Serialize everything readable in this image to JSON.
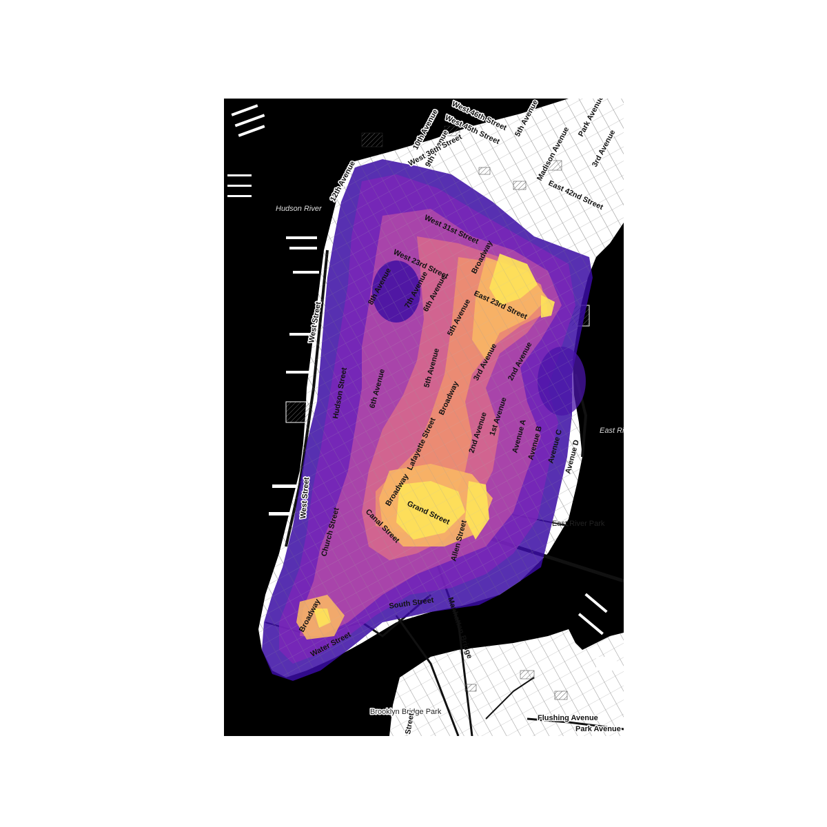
{
  "map": {
    "water_labels": [
      "Hudson River",
      "East River"
    ],
    "park_labels": [
      "East River Park",
      "Brooklyn Bridge Park"
    ],
    "street_labels": [
      "West 46th Street",
      "West 45th Street",
      "10th Avenue",
      "9th Avenue",
      "West 36th Street",
      "12th Avenue",
      "Madison Avenue",
      "5th Avenue",
      "Park Avenue",
      "3rd Avenue",
      "East 42nd Street",
      "West 31st Street",
      "West 23rd Street",
      "8th Avenue",
      "7th Avenue",
      "6th Avenue",
      "5th Avenue",
      "Broadway",
      "East 23rd Street",
      "3rd Avenue",
      "2nd Avenue",
      "West Street",
      "Hudson Street",
      "6th Avenue",
      "5th Avenue",
      "Lafayette Street",
      "Broadway",
      "2nd Avenue",
      "1st Avenue",
      "Avenue A",
      "Avenue B",
      "Avenue C",
      "Avenue D",
      "Broadway",
      "Grand Street",
      "Canal Street",
      "Church Street",
      "West Street",
      "Allen Street",
      "South Street",
      "Manhattan Bridge",
      "Broadway",
      "Water Street",
      "Flushing Avenue",
      "Park Avenue",
      "Street"
    ],
    "heat_colors": [
      "#3a0ca3",
      "#6a1fb0",
      "#9c35b6",
      "#c85a9d",
      "#e8867a",
      "#f7b26a",
      "#fde05a"
    ],
    "base_colors": {
      "land": "#ffffff",
      "water": "#000000",
      "street": "#222222"
    }
  }
}
